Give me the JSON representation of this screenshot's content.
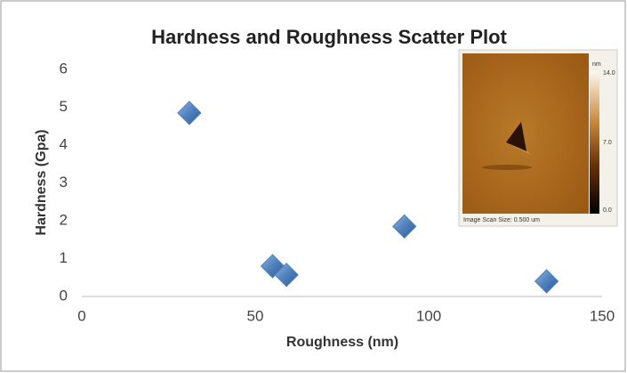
{
  "chart_data": {
    "type": "scatter",
    "title": "Hardness and Roughness Scatter Plot",
    "x_label": "Roughness (nm)",
    "y_label": "Hardness (Gpa)",
    "x": [
      31,
      55,
      59,
      93,
      134
    ],
    "values": [
      4.85,
      0.8,
      0.57,
      1.85,
      0.4
    ],
    "color": "#4f81bd",
    "xlim": [
      0,
      150
    ],
    "xticks": [
      0,
      50,
      100,
      150
    ],
    "ylim": [
      0,
      6
    ],
    "yticks": [
      0,
      1,
      2,
      3,
      4,
      5,
      6
    ],
    "grid": false,
    "inset": {
      "unit": "nm",
      "scale_labels": [
        "14.0",
        "7.0",
        "0.0"
      ],
      "caption": "Image Scan Size: 0.500 um"
    }
  }
}
